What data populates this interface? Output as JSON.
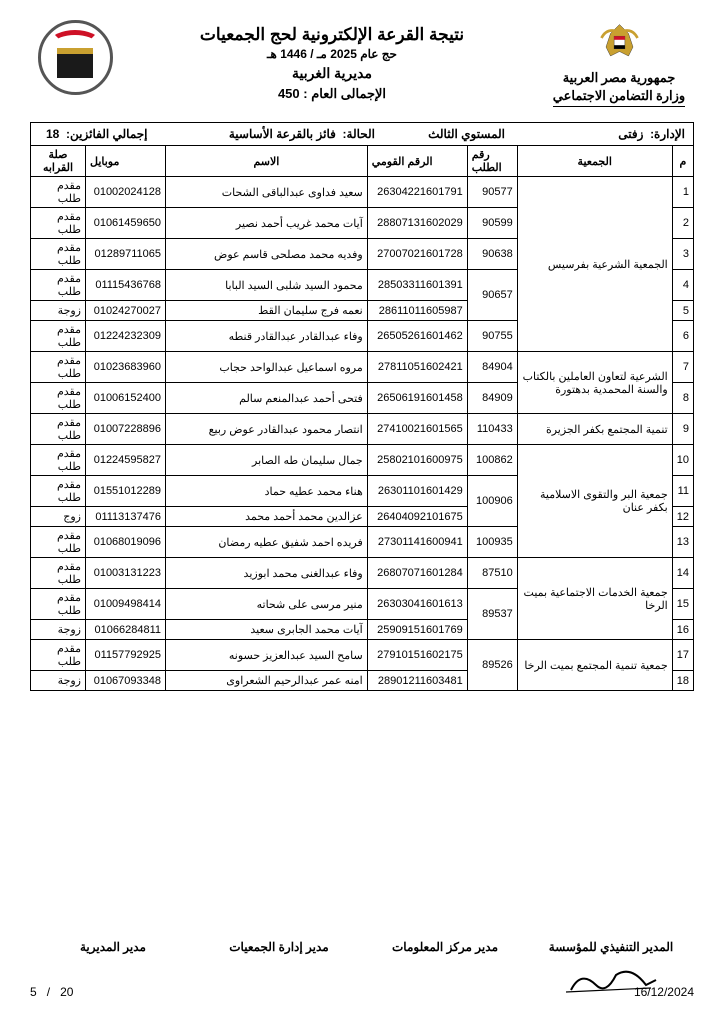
{
  "header": {
    "country": "جمهورية مصر العربية",
    "ministry": "وزارة التضامن الاجتماعي",
    "title_main": "نتيجة القرعة الإلكترونية لحج الجمعيات",
    "title_sub": "حج عام 2025 مـ / 1446 هـ",
    "directorate": "مديرية الغربية",
    "total_label": "الإجمالى العام :",
    "total_value": "450"
  },
  "info": {
    "admin_label": "الإدارة:",
    "admin_value": "زفتى",
    "level": "المستوي الثالث",
    "status_label": "الحالة:",
    "status_value": "فائز بالقرعة الأساسية",
    "winners_label": "إجمالي الفائزين:",
    "winners_value": "18"
  },
  "columns": [
    "م",
    "الجمعية",
    "رقم الطلب",
    "الرقم القومي",
    "الاسم",
    "موبايل",
    "صلة القرابه"
  ],
  "rows": [
    {
      "n": "1",
      "assoc": "",
      "req": "90577",
      "nid": "26304221601791",
      "name": "سعيد فداوى عبدالباقى الشحات",
      "mob": "01002024128",
      "rel": "مقدم طلب"
    },
    {
      "n": "2",
      "assoc": "",
      "req": "90599",
      "nid": "28807131602029",
      "name": "آيات محمد غريب أحمد نصير",
      "mob": "01061459650",
      "rel": "مقدم طلب"
    },
    {
      "n": "3",
      "assoc": "الجمعية الشرعية بفرسيس",
      "req": "90638",
      "nid": "27007021601728",
      "name": "وفديه محمد مصلحى قاسم عوض",
      "mob": "01289711065",
      "rel": "مقدم طلب"
    },
    {
      "n": "4",
      "assoc": "",
      "req": "90657",
      "nid": "28503311601391",
      "name": "محمود السيد شلبى السيد البابا",
      "mob": "01115436768",
      "rel": "مقدم طلب"
    },
    {
      "n": "5",
      "assoc": "",
      "req": "",
      "nid": "28611011605987",
      "name": "نعمه فرج سليمان القط",
      "mob": "01024270027",
      "rel": "زوجة"
    },
    {
      "n": "6",
      "assoc": "",
      "req": "90755",
      "nid": "26505261601462",
      "name": "وفاء عبدالقادر عبدالقادر قنطه",
      "mob": "01224232309",
      "rel": "مقدم طلب"
    },
    {
      "n": "7",
      "assoc": "الشرعية لتعاون العاملين بالكتاب والسنة المحمدية بدهتورة",
      "req": "84904",
      "nid": "27811051602421",
      "name": "مروه اسماعيل عبدالواحد حجاب",
      "mob": "01023683960",
      "rel": "مقدم طلب"
    },
    {
      "n": "8",
      "assoc": "",
      "req": "84909",
      "nid": "26506191601458",
      "name": "فتحى أحمد عبدالمنعم سالم",
      "mob": "01006152400",
      "rel": "مقدم طلب"
    },
    {
      "n": "9",
      "assoc": "تنمية المجتمع بكفر الجزيرة",
      "req": "110433",
      "nid": "27410021601565",
      "name": "انتصار محمود عبدالقادر عوض ربيع",
      "mob": "01007228896",
      "rel": "مقدم طلب"
    },
    {
      "n": "10",
      "assoc": "",
      "req": "100862",
      "nid": "25802101600975",
      "name": "جمال سليمان طه الصابر",
      "mob": "01224595827",
      "rel": "مقدم طلب"
    },
    {
      "n": "11",
      "assoc": "جمعية البر والتقوى الاسلامية بكفر عنان",
      "req": "100906",
      "nid": "26301101601429",
      "name": "هناء محمد عطيه حماد",
      "mob": "01551012289",
      "rel": "مقدم طلب"
    },
    {
      "n": "12",
      "assoc": "",
      "req": "",
      "nid": "26404092101675",
      "name": "عزالدين محمد أحمد محمد",
      "mob": "01113137476",
      "rel": "زوج"
    },
    {
      "n": "13",
      "assoc": "",
      "req": "100935",
      "nid": "27301141600941",
      "name": "فريده احمد شفيق عطيه رمضان",
      "mob": "01068019096",
      "rel": "مقدم طلب"
    },
    {
      "n": "14",
      "assoc": "",
      "req": "87510",
      "nid": "26807071601284",
      "name": "وفاء عبدالغنى محمد ابوزيد",
      "mob": "01003131223",
      "rel": "مقدم طلب"
    },
    {
      "n": "15",
      "assoc": "جمعية الخدمات الاجتماعية بميت الرخا",
      "req": "89537",
      "nid": "26303041601613",
      "name": "منير مرسى على شحاته",
      "mob": "01009498414",
      "rel": "مقدم طلب"
    },
    {
      "n": "16",
      "assoc": "",
      "req": "",
      "nid": "25909151601769",
      "name": "آيات محمد الجابرى سعيد",
      "mob": "01066284811",
      "rel": "زوجة"
    },
    {
      "n": "17",
      "assoc": "جمعية تنمية المجتمع بميت الرخا",
      "req": "89526",
      "nid": "27910151602175",
      "name": "سامح السيد عبدالعزيز حسونه",
      "mob": "01157792925",
      "rel": "مقدم طلب"
    },
    {
      "n": "18",
      "assoc": "",
      "req": "",
      "nid": "28901211603481",
      "name": "امنه عمر عبدالرحيم الشعراوى",
      "mob": "01067093348",
      "rel": "زوجة"
    }
  ],
  "assoc_spans": [
    {
      "start": 0,
      "span": 6,
      "key": 3
    },
    {
      "start": 6,
      "span": 2,
      "key": 7
    },
    {
      "start": 8,
      "span": 1,
      "key": 9
    },
    {
      "start": 9,
      "span": 4,
      "key": 11
    },
    {
      "start": 13,
      "span": 3,
      "key": 15
    },
    {
      "start": 16,
      "span": 2,
      "key": 17
    }
  ],
  "req_spans": [
    {
      "start": 0,
      "span": 1
    },
    {
      "start": 1,
      "span": 1
    },
    {
      "start": 2,
      "span": 1
    },
    {
      "start": 3,
      "span": 2
    },
    {
      "start": 5,
      "span": 1
    },
    {
      "start": 6,
      "span": 1
    },
    {
      "start": 7,
      "span": 1
    },
    {
      "start": 8,
      "span": 1
    },
    {
      "start": 9,
      "span": 1
    },
    {
      "start": 10,
      "span": 2
    },
    {
      "start": 12,
      "span": 1
    },
    {
      "start": 13,
      "span": 1
    },
    {
      "start": 14,
      "span": 2
    },
    {
      "start": 16,
      "span": 2
    }
  ],
  "footer": {
    "sig1": "المدير التنفيذي للمؤسسة",
    "sig2": "مدير مركز المعلومات",
    "sig3": "مدير إدارة الجمعيات",
    "sig4": "مدير المديرية",
    "date": "16/12/2024",
    "page_current": "5",
    "page_sep": "/",
    "page_total": "20"
  }
}
